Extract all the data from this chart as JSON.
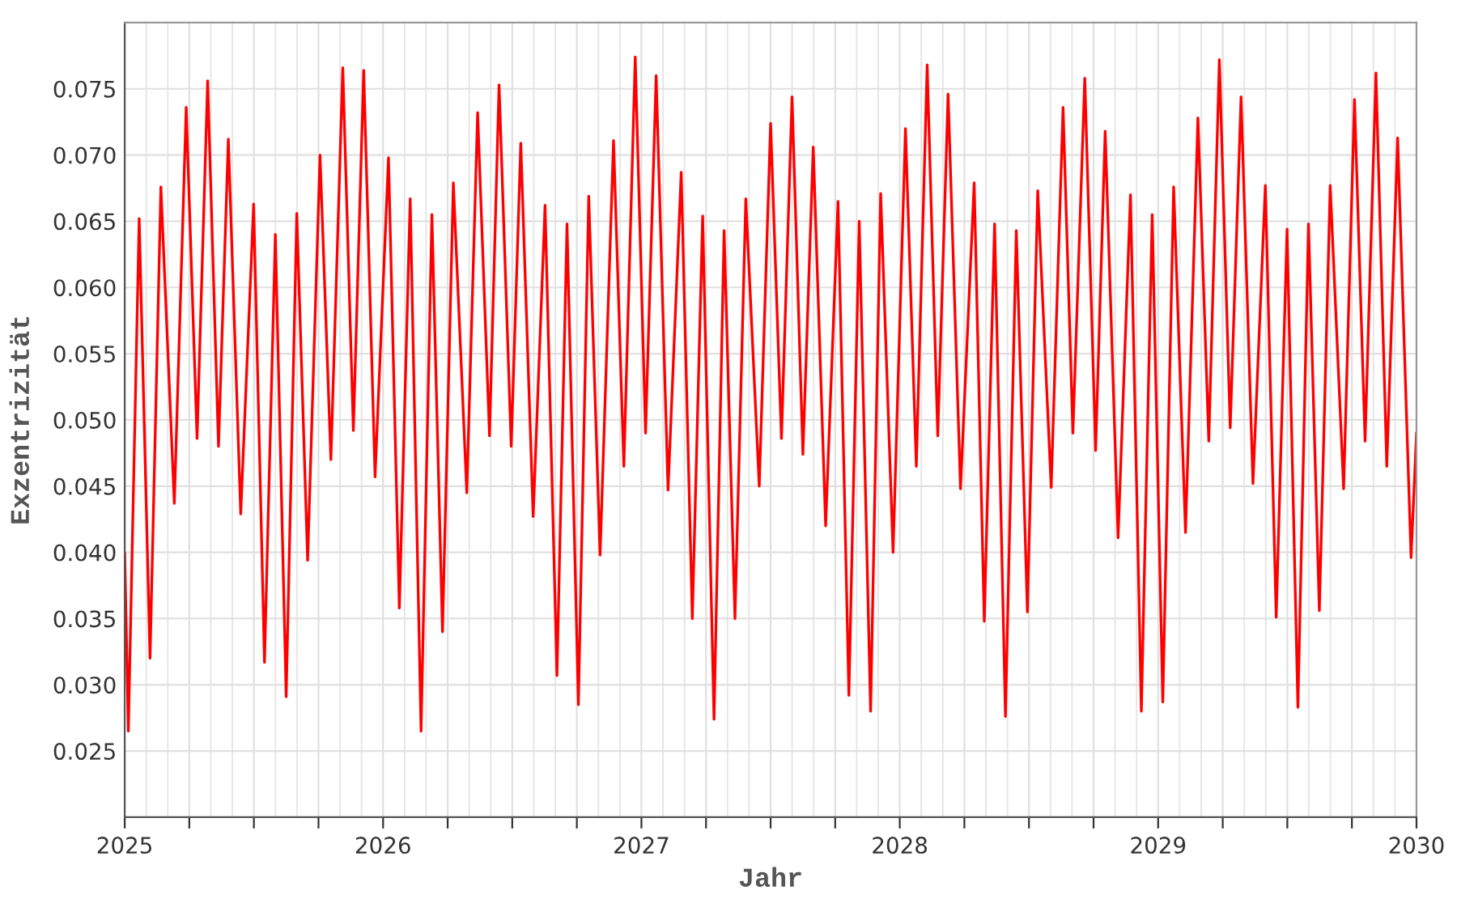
{
  "chart_data": {
    "type": "line",
    "xlabel": "Jahr",
    "ylabel": "Exzentrizität",
    "xlim": [
      2025,
      2030
    ],
    "ylim": [
      0.02,
      0.08
    ],
    "xticks": [
      2025,
      {
        "value": 2025.25,
        "label": null
      },
      {
        "value": 2025.5,
        "label": null
      },
      {
        "value": 2025.75,
        "label": null
      },
      2026,
      {
        "value": 2026.25,
        "label": null
      },
      {
        "value": 2026.5,
        "label": null
      },
      {
        "value": 2026.75,
        "label": null
      },
      2027,
      {
        "value": 2027.25,
        "label": null
      },
      {
        "value": 2027.5,
        "label": null
      },
      {
        "value": 2027.75,
        "label": null
      },
      2028,
      {
        "value": 2028.25,
        "label": null
      },
      {
        "value": 2028.5,
        "label": null
      },
      {
        "value": 2028.75,
        "label": null
      },
      2029,
      {
        "value": 2029.25,
        "label": null
      },
      {
        "value": 2029.5,
        "label": null
      },
      {
        "value": 2029.75,
        "label": null
      },
      2030
    ],
    "yticks": [
      {
        "value": 0.025,
        "label": "0.025"
      },
      {
        "value": 0.03,
        "label": "0.030"
      },
      {
        "value": 0.035,
        "label": "0.035"
      },
      {
        "value": 0.04,
        "label": "0.040"
      },
      {
        "value": 0.045,
        "label": "0.045"
      },
      {
        "value": 0.05,
        "label": "0.050"
      },
      {
        "value": 0.055,
        "label": "0.055"
      },
      {
        "value": 0.06,
        "label": "0.060"
      },
      {
        "value": 0.065,
        "label": "0.065"
      },
      {
        "value": 0.07,
        "label": "0.070"
      },
      {
        "value": 0.075,
        "label": "0.075"
      }
    ],
    "grid": true,
    "marker": "none",
    "line_style": "solid",
    "series": [
      {
        "color": "#ff0000",
        "x": [
          2025.0,
          2025.014,
          2025.056,
          2025.098,
          2025.14,
          2025.192,
          2025.238,
          2025.28,
          2025.321,
          2025.363,
          2025.401,
          2025.449,
          2025.499,
          2025.541,
          2025.583,
          2025.625,
          2025.666,
          2025.708,
          2025.756,
          2025.798,
          2025.844,
          2025.885,
          2025.925,
          2025.969,
          2026.021,
          2026.063,
          2026.105,
          2026.147,
          2026.189,
          2026.23,
          2026.272,
          2026.324,
          2026.366,
          2026.412,
          2026.449,
          2026.496,
          2026.533,
          2026.581,
          2026.627,
          2026.673,
          2026.712,
          2026.756,
          2026.796,
          2026.84,
          2026.892,
          2026.932,
          2026.976,
          2027.016,
          2027.057,
          2027.103,
          2027.154,
          2027.197,
          2027.237,
          2027.281,
          2027.32,
          2027.362,
          2027.404,
          2027.456,
          2027.5,
          2027.542,
          2027.583,
          2027.625,
          2027.665,
          2027.713,
          2027.761,
          2027.803,
          2027.843,
          2027.887,
          2027.926,
          2027.974,
          2028.022,
          2028.064,
          2028.106,
          2028.147,
          2028.187,
          2028.235,
          2028.288,
          2028.327,
          2028.367,
          2028.409,
          2028.451,
          2028.494,
          2028.534,
          2028.586,
          2028.632,
          2028.67,
          2028.716,
          2028.758,
          2028.795,
          2028.845,
          2028.893,
          2028.935,
          2028.977,
          2029.018,
          2029.06,
          2029.106,
          2029.154,
          2029.196,
          2029.237,
          2029.279,
          2029.321,
          2029.367,
          2029.415,
          2029.457,
          2029.499,
          2029.541,
          2029.582,
          2029.624,
          2029.666,
          2029.718,
          2029.76,
          2029.801,
          2029.843,
          2029.885,
          2029.927,
          2029.979,
          2030.0
        ],
        "values": [
          0.0399,
          0.0265,
          0.0652,
          0.032,
          0.0676,
          0.0437,
          0.0736,
          0.0486,
          0.0756,
          0.048,
          0.0712,
          0.0429,
          0.0663,
          0.0317,
          0.064,
          0.0291,
          0.0656,
          0.0394,
          0.07,
          0.047,
          0.0766,
          0.0492,
          0.0764,
          0.0457,
          0.0698,
          0.0358,
          0.0667,
          0.0265,
          0.0655,
          0.034,
          0.0679,
          0.0445,
          0.0732,
          0.0488,
          0.0753,
          0.048,
          0.0709,
          0.0427,
          0.0662,
          0.0307,
          0.0648,
          0.0285,
          0.0669,
          0.0398,
          0.0711,
          0.0465,
          0.0774,
          0.049,
          0.076,
          0.0447,
          0.0687,
          0.035,
          0.0654,
          0.0274,
          0.0643,
          0.035,
          0.0667,
          0.045,
          0.0724,
          0.0486,
          0.0744,
          0.0474,
          0.0706,
          0.042,
          0.0665,
          0.0292,
          0.065,
          0.028,
          0.0671,
          0.04,
          0.072,
          0.0465,
          0.0768,
          0.0488,
          0.0746,
          0.0448,
          0.0679,
          0.0348,
          0.0648,
          0.0276,
          0.0643,
          0.0355,
          0.0673,
          0.0449,
          0.0736,
          0.049,
          0.0758,
          0.0477,
          0.0718,
          0.0411,
          0.067,
          0.028,
          0.0655,
          0.0287,
          0.0676,
          0.0415,
          0.0728,
          0.0484,
          0.0772,
          0.0494,
          0.0744,
          0.0452,
          0.0677,
          0.0351,
          0.0644,
          0.0283,
          0.0648,
          0.0356,
          0.0677,
          0.0448,
          0.0742,
          0.0484,
          0.0762,
          0.0465,
          0.0713,
          0.0396,
          0.049
        ]
      }
    ]
  }
}
